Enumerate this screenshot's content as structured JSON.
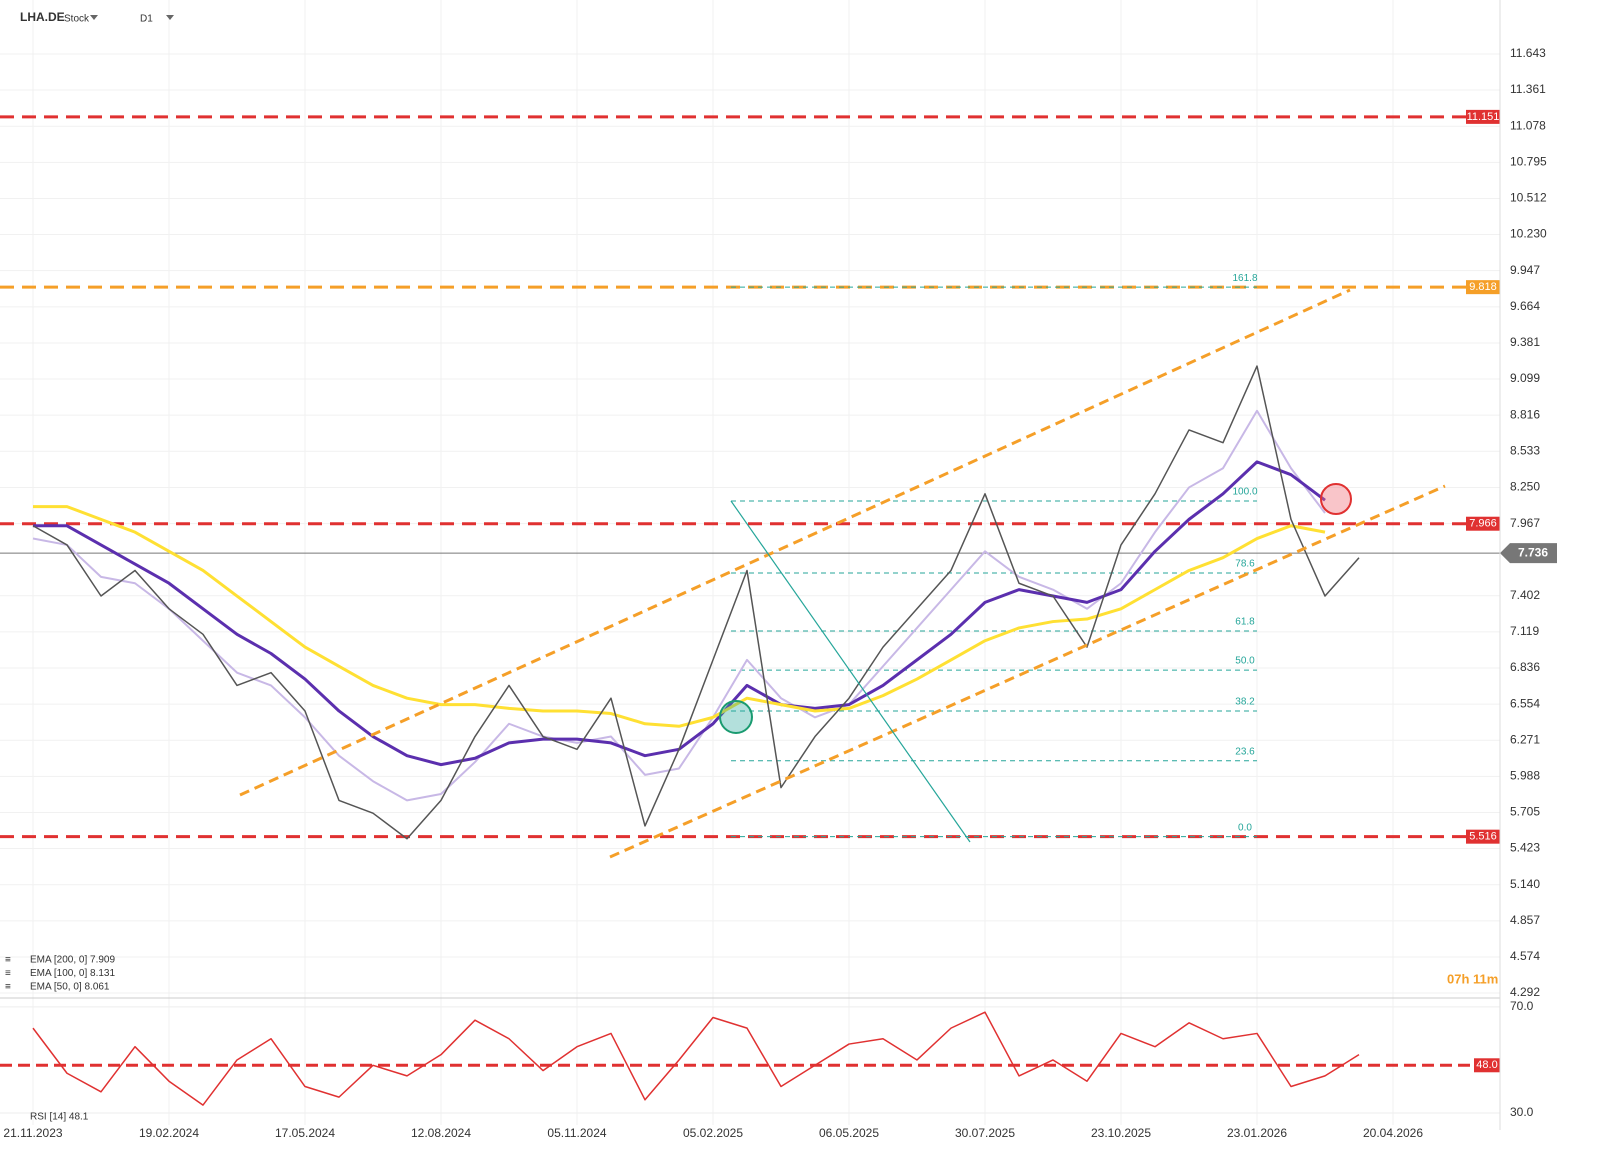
{
  "header": {
    "symbol": "LHA.DE",
    "kind": "Stock",
    "timeframe": "D1",
    "countdown": "07h 11m"
  },
  "chart_data": {
    "type": "line",
    "categories": [
      "21.11.2023",
      null,
      null,
      null,
      "19.02.2024",
      null,
      null,
      null,
      "17.05.2024",
      null,
      null,
      null,
      "12.08.2024",
      null,
      null,
      null,
      "05.11.2024",
      null,
      null,
      null,
      "05.02.2025",
      null,
      null,
      null,
      "06.05.2025",
      null,
      null,
      null,
      "30.07.2025",
      null,
      null,
      null,
      "23.10.2025",
      null,
      null,
      null,
      "23.01.2026",
      null,
      null,
      null,
      "20.04.2026"
    ],
    "series": [
      {
        "name": "Price",
        "color": "#555555",
        "values": [
          7.95,
          7.8,
          7.4,
          7.6,
          7.3,
          7.1,
          6.7,
          6.8,
          6.5,
          5.8,
          5.7,
          5.5,
          5.8,
          6.3,
          6.7,
          6.3,
          6.2,
          6.6,
          5.6,
          6.2,
          6.9,
          7.6,
          5.9,
          6.3,
          6.6,
          7.0,
          7.3,
          7.6,
          8.2,
          7.5,
          7.4,
          7.0,
          7.8,
          8.2,
          8.7,
          8.6,
          9.2,
          8.0,
          7.4,
          7.7,
          null
        ]
      },
      {
        "name": "EMA [200, 0] 7.909",
        "color": "#ffe033",
        "width": 3,
        "values": [
          8.1,
          8.1,
          8.0,
          7.9,
          7.75,
          7.6,
          7.4,
          7.2,
          7.0,
          6.85,
          6.7,
          6.6,
          6.55,
          6.55,
          6.52,
          6.5,
          6.5,
          6.48,
          6.4,
          6.38,
          6.45,
          6.6,
          6.55,
          6.5,
          6.52,
          6.62,
          6.75,
          6.9,
          7.05,
          7.15,
          7.2,
          7.22,
          7.3,
          7.45,
          7.6,
          7.7,
          7.85,
          7.95,
          7.9,
          null,
          null
        ]
      },
      {
        "name": "EMA [100, 0] 8.131",
        "color": "#5b2fae",
        "width": 3,
        "values": [
          7.95,
          7.95,
          7.8,
          7.65,
          7.5,
          7.3,
          7.1,
          6.95,
          6.75,
          6.5,
          6.3,
          6.15,
          6.08,
          6.13,
          6.25,
          6.28,
          6.28,
          6.25,
          6.15,
          6.2,
          6.4,
          6.7,
          6.55,
          6.52,
          6.55,
          6.7,
          6.9,
          7.1,
          7.35,
          7.45,
          7.4,
          7.35,
          7.45,
          7.75,
          8.0,
          8.2,
          8.45,
          8.35,
          8.15,
          null,
          null
        ]
      },
      {
        "name": "EMA [50, 0] 8.061",
        "color": "#c8b8e6",
        "width": 2,
        "values": [
          7.85,
          7.8,
          7.55,
          7.5,
          7.3,
          7.05,
          6.8,
          6.7,
          6.45,
          6.15,
          5.95,
          5.8,
          5.85,
          6.1,
          6.4,
          6.3,
          6.25,
          6.3,
          6.0,
          6.05,
          6.45,
          6.9,
          6.6,
          6.45,
          6.55,
          6.85,
          7.15,
          7.45,
          7.75,
          7.55,
          7.45,
          7.3,
          7.5,
          7.9,
          8.25,
          8.4,
          8.85,
          8.4,
          8.05,
          null,
          null
        ]
      }
    ],
    "ylim": [
      4.253,
      12.066
    ],
    "yticks": [
      11.643,
      11.361,
      11.078,
      10.795,
      10.512,
      {
        "value": 10.23,
        "label": "10.230"
      },
      9.947,
      9.664,
      9.381,
      9.099,
      8.816,
      8.533,
      {
        "value": 8.25,
        "label": "8.250"
      },
      7.967,
      7.402,
      7.119,
      6.836,
      6.554,
      6.271,
      5.988,
      5.705,
      5.423,
      {
        "value": 5.14,
        "label": "5.140"
      },
      4.857,
      4.574,
      4.292
    ],
    "levels": [
      {
        "value": 11.151,
        "color": "#e03131"
      },
      {
        "value": 9.818,
        "color": "#f59f28"
      },
      {
        "value": 7.966,
        "color": "#e03131"
      },
      {
        "value": 5.516,
        "color": "#e03131"
      }
    ],
    "last_price": {
      "value": 7.736,
      "color": "#777777"
    },
    "fib": [
      {
        "label": "161.8",
        "value": 9.818
      },
      {
        "label": "100.0",
        "value": 8.144
      },
      {
        "label": "78.6",
        "value": 7.58
      },
      {
        "label": "61.8",
        "value": 7.126
      },
      {
        "label": "50.0",
        "value": 6.82
      },
      {
        "label": "38.2",
        "value": 6.5
      },
      {
        "label": "23.6",
        "value": 6.11
      },
      {
        "label": "0.0",
        "value": 5.516
      }
    ],
    "rsi": {
      "name": "RSI [14] 48.1",
      "color": "#e03131",
      "values": [
        62,
        45,
        38,
        55,
        42,
        33,
        50,
        58,
        40,
        36,
        48,
        44,
        52,
        65,
        58,
        46,
        55,
        60,
        35,
        50,
        66,
        62,
        40,
        48,
        56,
        58,
        50,
        62,
        68,
        44,
        50,
        42,
        60,
        55,
        64,
        58,
        60,
        40,
        44,
        52,
        null
      ],
      "ylim": [
        25.5,
        72.6
      ],
      "yticks": [
        {
          "value": 70,
          "label": "70.0"
        },
        {
          "value": 30,
          "label": "30.0"
        }
      ],
      "level": {
        "value": 48,
        "label": "48.0"
      }
    }
  }
}
